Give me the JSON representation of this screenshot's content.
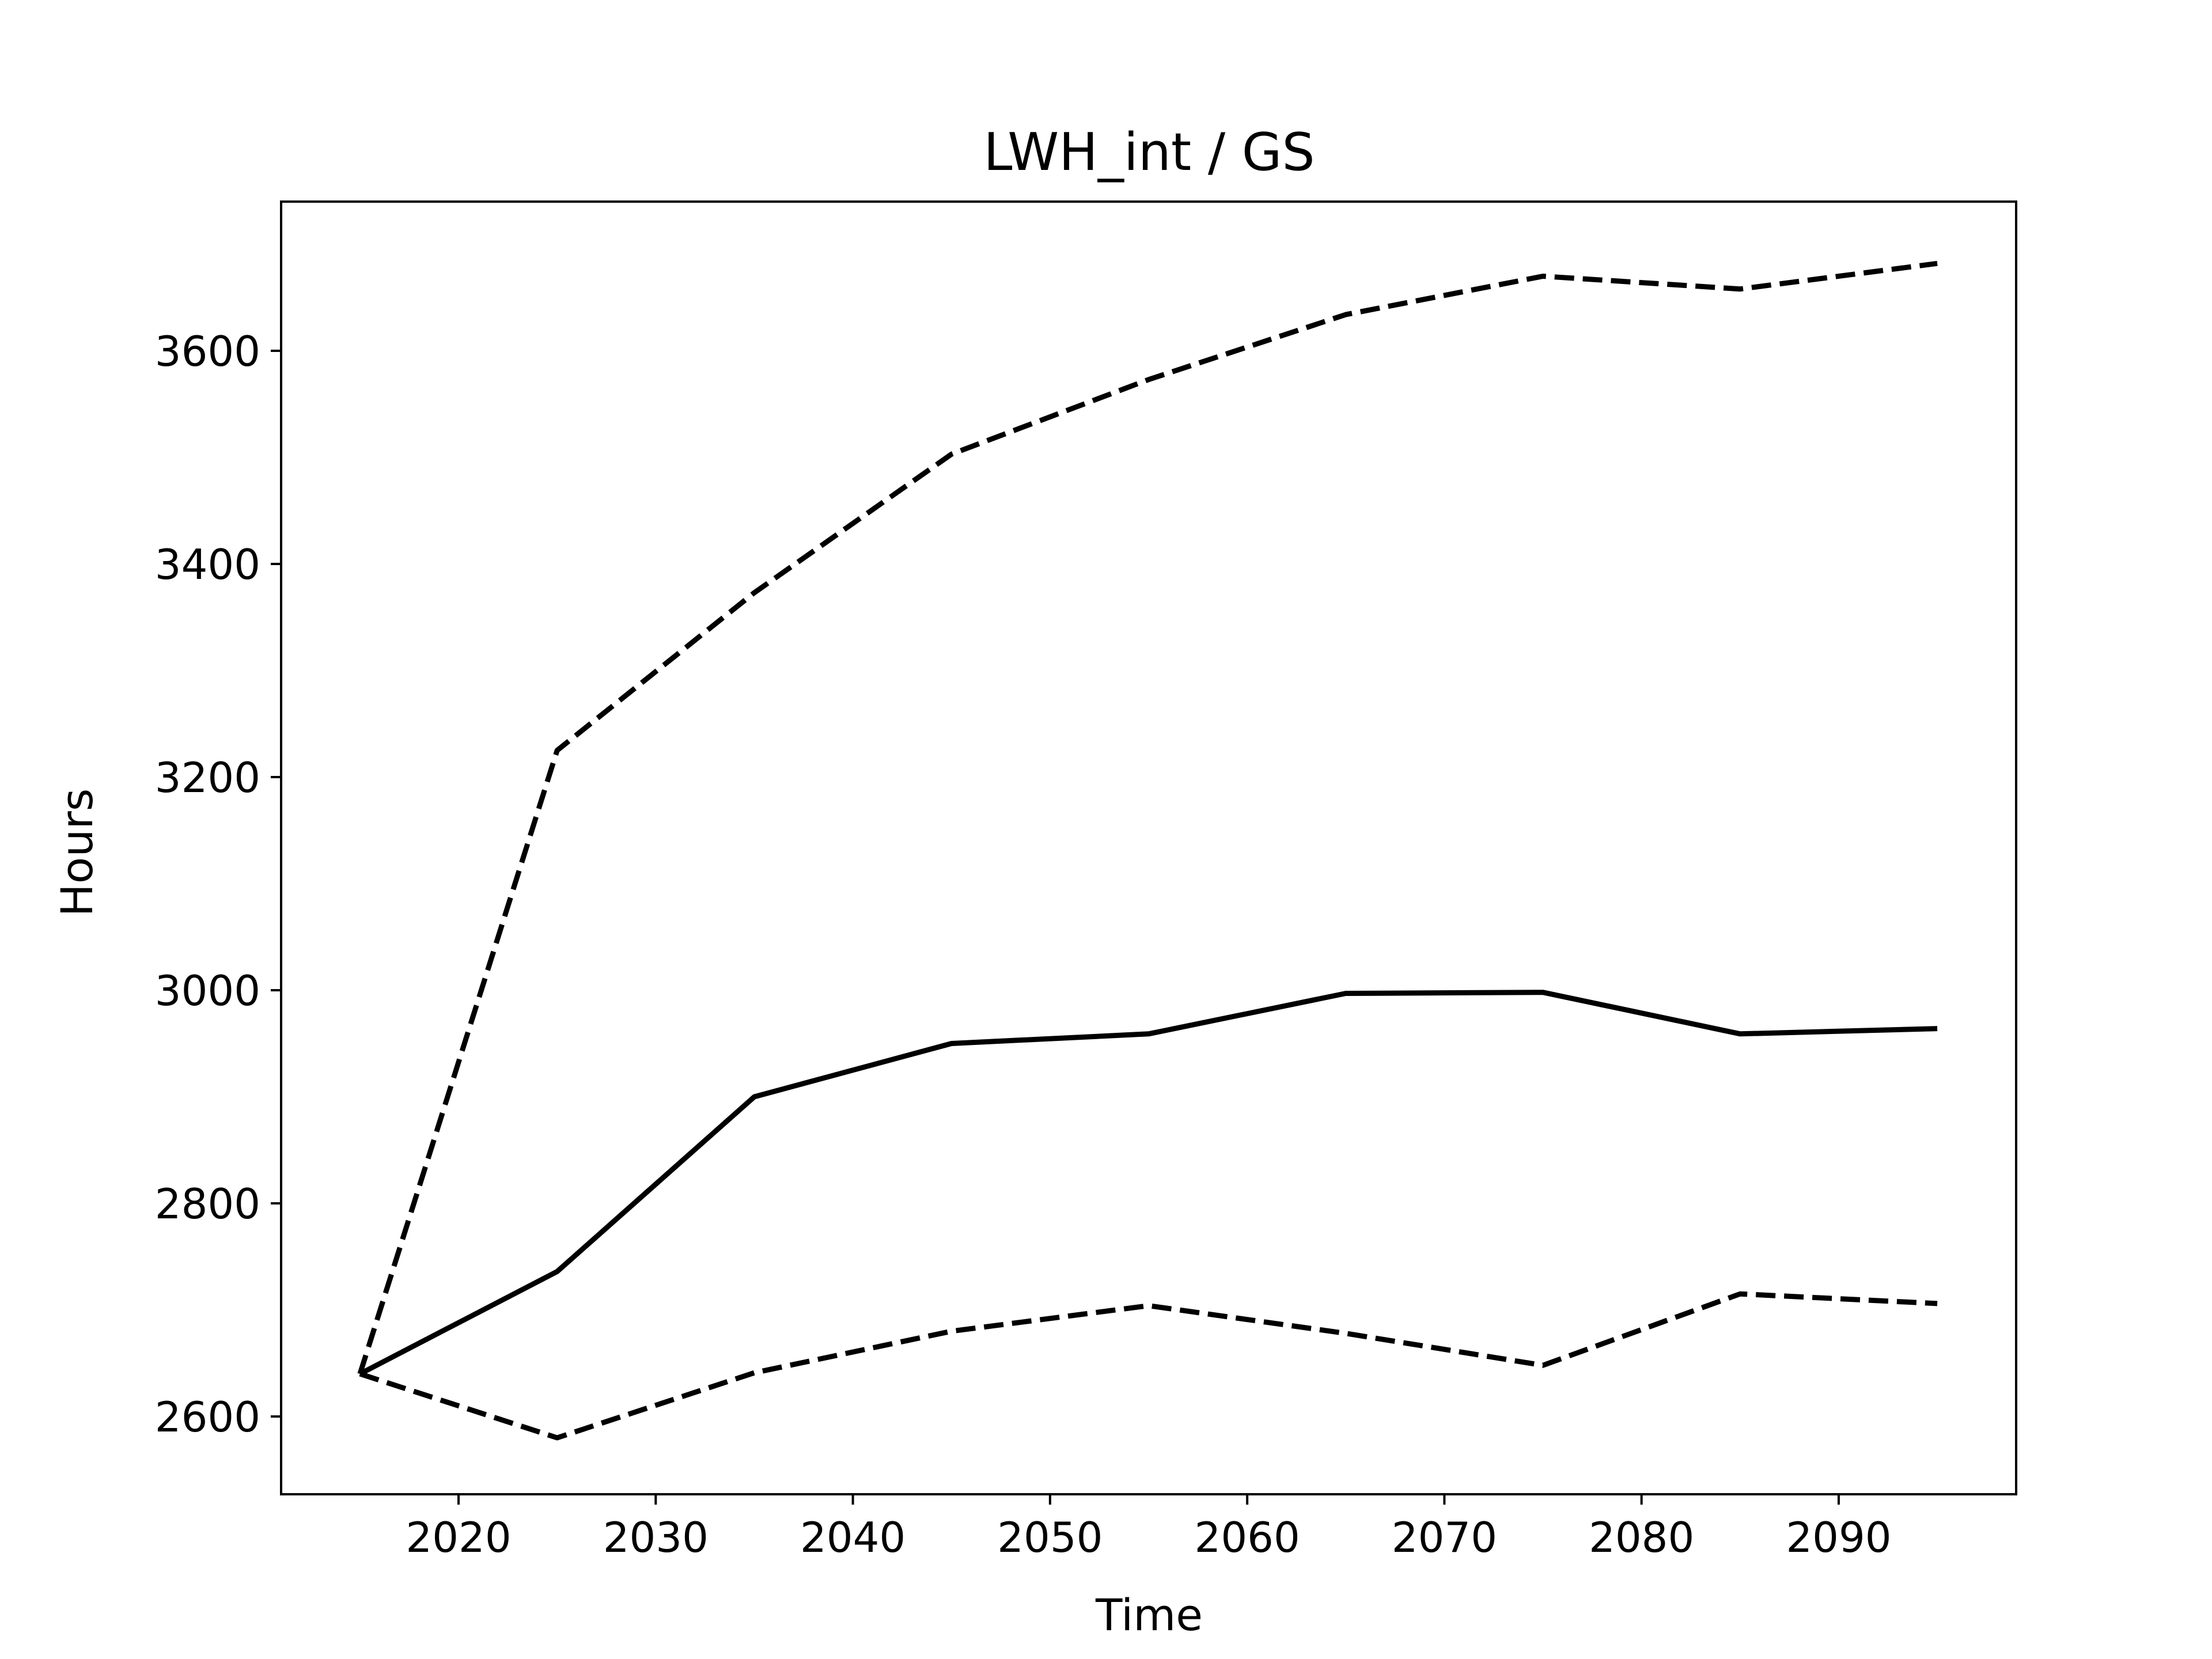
{
  "chart_data": {
    "type": "line",
    "title": "LWH_int / GS",
    "xlabel": "Time",
    "ylabel": "Hours",
    "xlim": [
      2011,
      2099
    ],
    "ylim": [
      2527,
      3740
    ],
    "xticks": [
      2020,
      2030,
      2040,
      2050,
      2060,
      2070,
      2080,
      2090
    ],
    "yticks": [
      2600,
      2800,
      3000,
      3200,
      3400,
      3600
    ],
    "grid": false,
    "legend": "none",
    "line_color": "#000000",
    "series": [
      {
        "style": "dashed",
        "x": [
          2015,
          2025,
          2035,
          2045,
          2055,
          2065,
          2075,
          2085,
          2095
        ],
        "y": [
          2640,
          3225,
          3373,
          3503,
          3573,
          3634,
          3670,
          3658,
          3682
        ]
      },
      {
        "style": "solid",
        "x": [
          2015,
          2025,
          2035,
          2045,
          2055,
          2065,
          2075,
          2085,
          2095
        ],
        "y": [
          2640,
          2736,
          2900,
          2950,
          2959,
          2997,
          2998,
          2959,
          2964
        ]
      },
      {
        "style": "dashed",
        "x": [
          2015,
          2025,
          2035,
          2045,
          2055,
          2065,
          2075,
          2085,
          2095
        ],
        "y": [
          2640,
          2580,
          2641,
          2680,
          2704,
          2678,
          2648,
          2715,
          2706
        ]
      }
    ]
  }
}
